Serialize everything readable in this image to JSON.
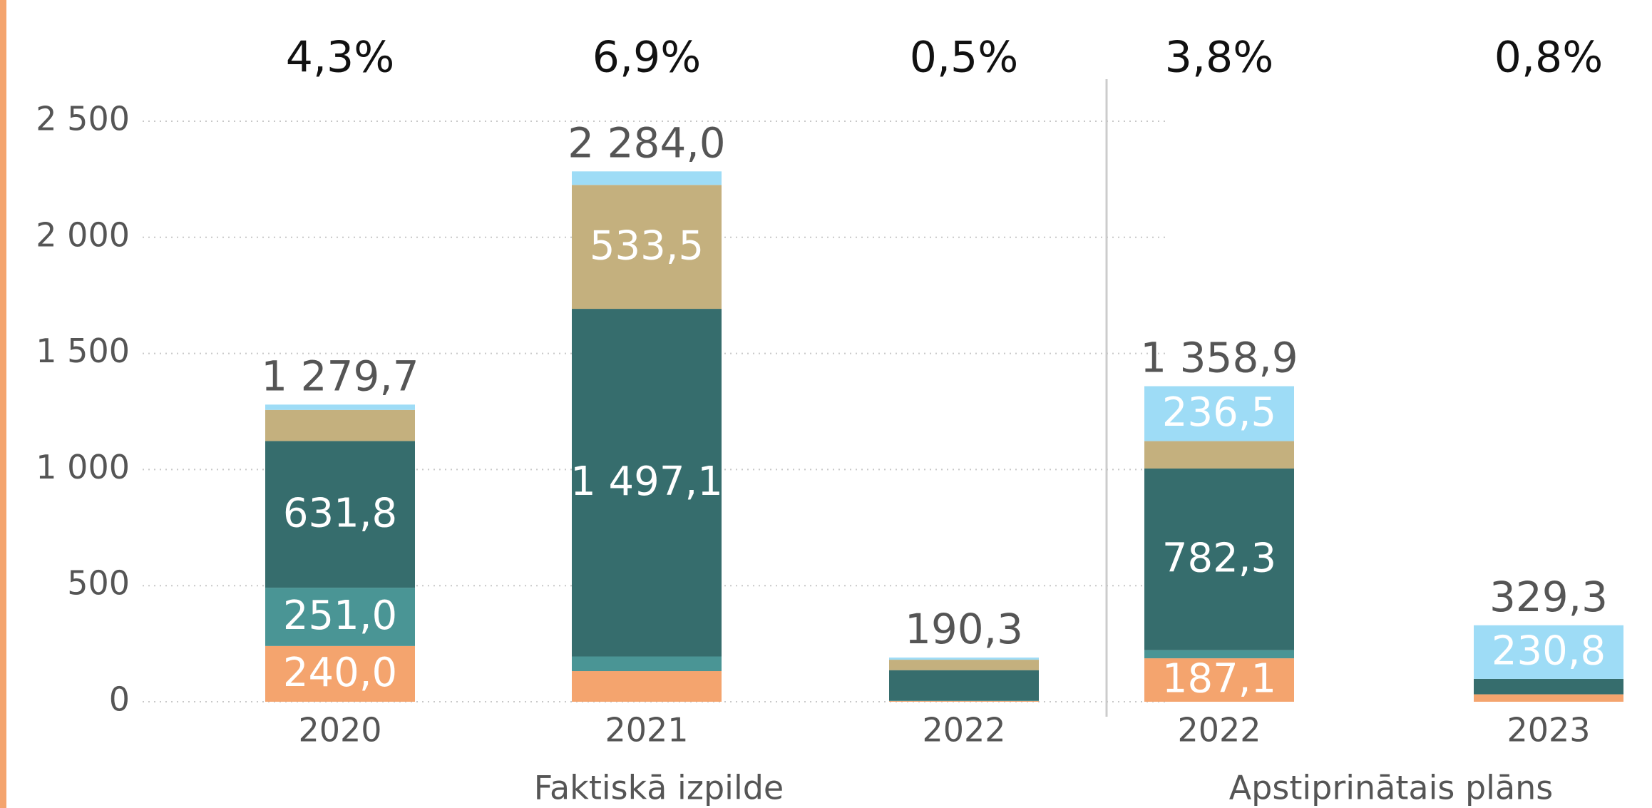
{
  "chart_data": {
    "type": "stacked_bar",
    "categories": [
      "2020",
      "2021",
      "2022",
      "2022",
      "2023"
    ],
    "groups": [
      "Faktiskā izpilde",
      "Apstiprinātais plāns"
    ],
    "series": [
      {
        "color": "#f4a46e",
        "values": [
          240.0,
          132.0,
          3.0,
          187.1,
          32.0
        ],
        "value_labels": [
          "240,0",
          null,
          null,
          "187,1",
          null
        ]
      },
      {
        "color": "#4a9595",
        "values": [
          251.0,
          63.0,
          2.0,
          35.0,
          0
        ],
        "value_labels": [
          "251,0",
          null,
          null,
          null,
          null
        ]
      },
      {
        "color": "#366d6d",
        "values": [
          631.8,
          1497.1,
          131.0,
          782.3,
          66.5
        ],
        "value_labels": [
          "631,8",
          "1 497,1",
          null,
          "782,3",
          null
        ]
      },
      {
        "color": "#c4b07e",
        "values": [
          134.0,
          533.5,
          45.0,
          118.0,
          0
        ],
        "value_labels": [
          null,
          "533,5",
          null,
          null,
          null
        ]
      },
      {
        "color": "#9edcf6",
        "values": [
          22.9,
          58.4,
          9.3,
          236.5,
          230.8
        ],
        "value_labels": [
          null,
          null,
          null,
          "236,5",
          "230,8"
        ]
      }
    ],
    "total_labels": [
      "1 279,7",
      "2 284,0",
      "190,3",
      "1 358,9",
      "329,3"
    ],
    "percent_labels": [
      "4,3%",
      "6,9%",
      "0,5%",
      "3,8%",
      "0,8%"
    ],
    "ylim": [
      0,
      2500
    ],
    "yticks": [
      0,
      500,
      {
        "value": 1000,
        "label": "1 000"
      },
      {
        "value": 1500,
        "label": "1 500"
      },
      {
        "value": 2000,
        "label": "2 000"
      },
      {
        "value": 2500,
        "label": "2 500"
      }
    ],
    "grid": true
  }
}
